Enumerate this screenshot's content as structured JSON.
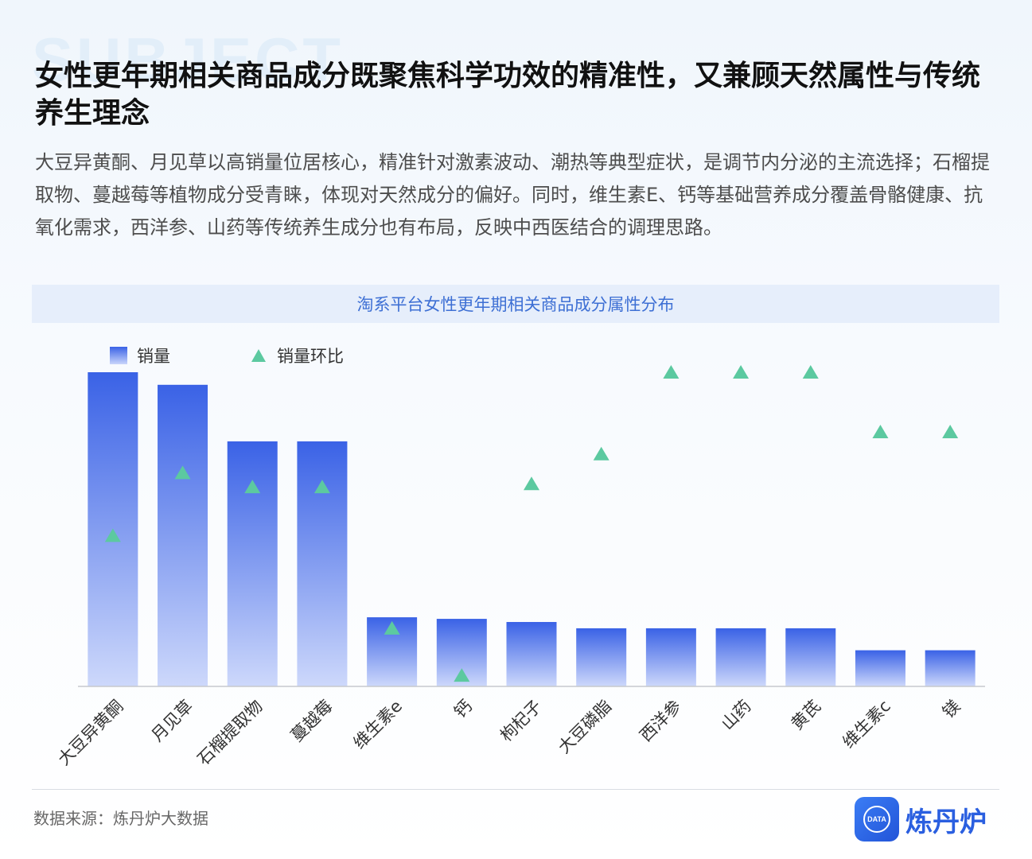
{
  "watermark": "SUBJECT",
  "headline": "女性更年期相关商品成分既聚焦科学功效的精准性，又兼顾天然属性与传统养生理念",
  "summary": "大豆异黄酮、月见草以高销量位居核心，精准针对激素波动、潮热等典型症状，是调节内分泌的主流选择；石榴提取物、蔓越莓等植物成分受青睐，体现对天然成分的偏好。同时，维生素E、钙等基础营养成分覆盖骨骼健康、抗氧化需求，西洋参、山药等传统养生成分也有布局，反映中西医结合的调理思路。",
  "colors": {
    "bar_top": "#3a62e6",
    "bar_bottom": "#cdd8fb",
    "marker": "#5cc9a0",
    "banner_text": "#3d6fd4",
    "brand": "#2a5fe0"
  },
  "chart_data": {
    "type": "bar",
    "title": "淘系平台女性更年期相关商品成分属性分布",
    "categories": [
      "大豆异黄酮",
      "月见草",
      "石榴提取物",
      "蔓越莓",
      "维生素e",
      "钙",
      "枸杞子",
      "大豆磷脂",
      "西洋参",
      "山药",
      "黄芪",
      "维生素c",
      "镁"
    ],
    "series": [
      {
        "name": "销量",
        "type": "bar",
        "values": [
          100,
          96,
          78,
          78,
          22,
          21.5,
          20.5,
          18.5,
          18.5,
          18.5,
          18.5,
          11.5,
          11.5
        ]
      },
      {
        "name": "销量环比",
        "type": "scatter",
        "marker": "triangle",
        "values": [
          48,
          68,
          63.5,
          63.5,
          18.5,
          3.5,
          64.5,
          74,
          100,
          100,
          100,
          81,
          81
        ]
      }
    ],
    "ylim": [
      0,
      100
    ],
    "legend": "top-left",
    "grid": false
  },
  "footer": {
    "source": "数据来源：炼丹炉大数据",
    "brand": "炼丹炉",
    "logo_text": "DATA"
  }
}
